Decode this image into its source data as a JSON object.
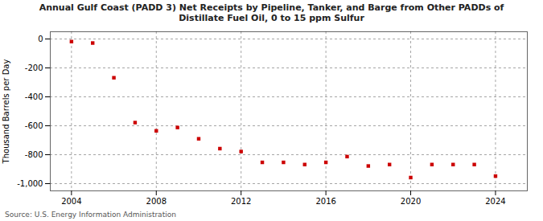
{
  "chart_data": {
    "type": "scatter",
    "title": "Annual Gulf Coast (PADD 3) Net Receipts by Pipeline, Tanker, and Barge from Other PADDs of\nDistillate Fuel Oil, 0 to 15 ppm Sulfur",
    "ylabel": "Thousand Barrels per Day",
    "source": "Source: U.S. Energy Information Administration",
    "x": [
      2004,
      2005,
      2006,
      2007,
      2008,
      2009,
      2010,
      2011,
      2012,
      2013,
      2014,
      2015,
      2016,
      2017,
      2018,
      2019,
      2020,
      2021,
      2022,
      2023,
      2024
    ],
    "values": [
      -18,
      -28,
      -268,
      -578,
      -635,
      -612,
      -690,
      -758,
      -778,
      -853,
      -853,
      -868,
      -853,
      -813,
      -878,
      -868,
      -958,
      -868,
      -868,
      -868,
      -948
    ],
    "color": "#cc0000",
    "marker": "square",
    "xlim": [
      2003.0,
      2025.5
    ],
    "ylim": [
      -1050,
      50
    ],
    "xticks": [
      2004,
      2008,
      2012,
      2016,
      2020,
      2024
    ],
    "yticks": [
      0,
      -200,
      -400,
      -600,
      -800,
      {
        "value": -1000,
        "label": "-1,000"
      }
    ],
    "grid": true
  }
}
